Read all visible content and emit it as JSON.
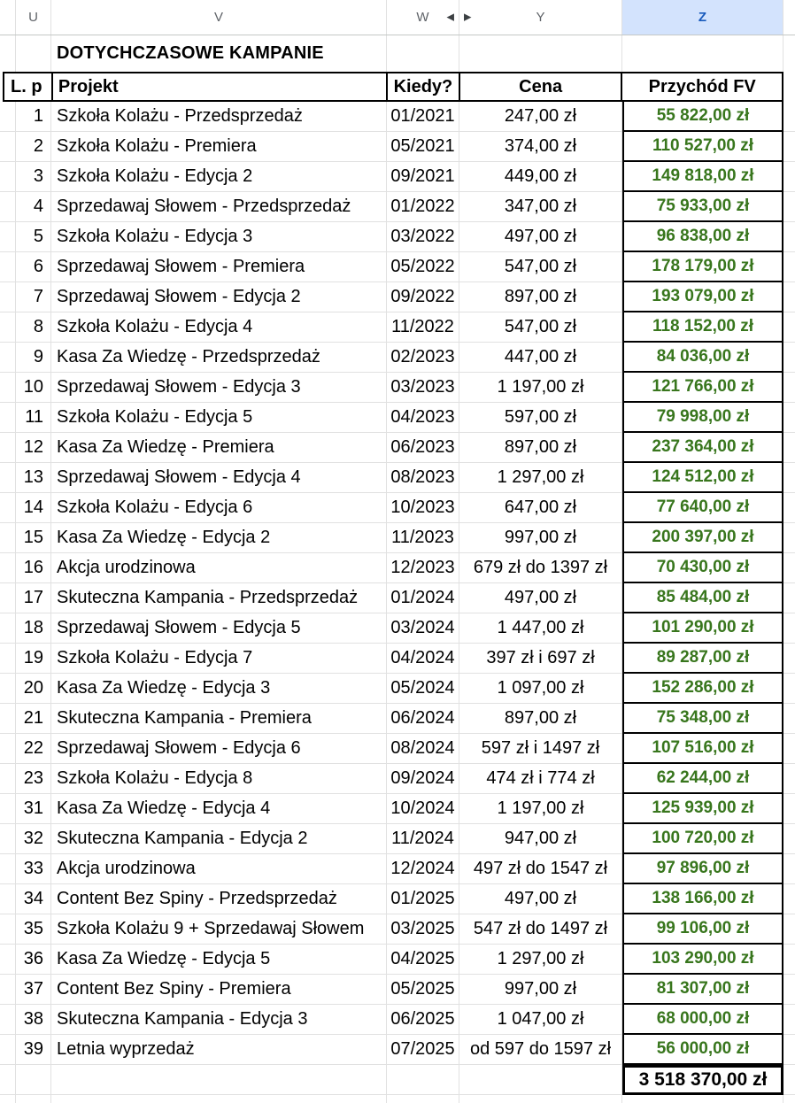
{
  "colstrip": {
    "letters": [
      "U",
      "V",
      "W",
      "Y",
      "Z"
    ]
  },
  "icons": {
    "collapse_left_arrow": "◀",
    "collapse_right_arrow": "▶"
  },
  "title": "DOTYCHCZASOWE KAMPANIE",
  "table": {
    "headers": {
      "lp": "L. p",
      "projekt": "Projekt",
      "kiedy": "Kiedy?",
      "cena": "Cena",
      "przychod": "Przychód FV"
    }
  },
  "rows": [
    {
      "lp": "1",
      "projekt": "Szkoła Kolażu - Przedsprzedaż",
      "kiedy": "01/2021",
      "cena": "247,00 zł",
      "przychod": "55 822,00 zł"
    },
    {
      "lp": "2",
      "projekt": "Szkoła Kolażu - Premiera",
      "kiedy": "05/2021",
      "cena": "374,00 zł",
      "przychod": "110 527,00 zł"
    },
    {
      "lp": "3",
      "projekt": "Szkoła Kolażu - Edycja 2",
      "kiedy": "09/2021",
      "cena": "449,00 zł",
      "przychod": "149 818,00 zł"
    },
    {
      "lp": "4",
      "projekt": "Sprzedawaj Słowem - Przedsprzedaż",
      "kiedy": "01/2022",
      "cena": "347,00 zł",
      "przychod": "75 933,00 zł"
    },
    {
      "lp": "5",
      "projekt": "Szkoła Kolażu - Edycja 3",
      "kiedy": "03/2022",
      "cena": "497,00 zł",
      "przychod": "96 838,00 zł"
    },
    {
      "lp": "6",
      "projekt": "Sprzedawaj Słowem - Premiera",
      "kiedy": "05/2022",
      "cena": "547,00 zł",
      "przychod": "178 179,00 zł"
    },
    {
      "lp": "7",
      "projekt": "Sprzedawaj Słowem - Edycja 2",
      "kiedy": "09/2022",
      "cena": "897,00 zł",
      "przychod": "193 079,00 zł"
    },
    {
      "lp": "8",
      "projekt": "Szkoła Kolażu - Edycja 4",
      "kiedy": "11/2022",
      "cena": "547,00 zł",
      "przychod": "118 152,00 zł"
    },
    {
      "lp": "9",
      "projekt": "Kasa Za Wiedzę - Przedsprzedaż",
      "kiedy": "02/2023",
      "cena": "447,00 zł",
      "przychod": "84 036,00 zł"
    },
    {
      "lp": "10",
      "projekt": "Sprzedawaj Słowem - Edycja 3",
      "kiedy": "03/2023",
      "cena": "1 197,00 zł",
      "przychod": "121 766,00 zł"
    },
    {
      "lp": "11",
      "projekt": "Szkoła Kolażu - Edycja 5",
      "kiedy": "04/2023",
      "cena": "597,00 zł",
      "przychod": "79 998,00 zł"
    },
    {
      "lp": "12",
      "projekt": "Kasa Za Wiedzę - Premiera",
      "kiedy": "06/2023",
      "cena": "897,00 zł",
      "przychod": "237 364,00 zł"
    },
    {
      "lp": "13",
      "projekt": "Sprzedawaj Słowem - Edycja 4",
      "kiedy": "08/2023",
      "cena": "1 297,00 zł",
      "przychod": "124 512,00 zł"
    },
    {
      "lp": "14",
      "projekt": "Szkoła Kolażu - Edycja 6",
      "kiedy": "10/2023",
      "cena": "647,00 zł",
      "przychod": "77 640,00 zł"
    },
    {
      "lp": "15",
      "projekt": "Kasa Za Wiedzę - Edycja 2",
      "kiedy": "11/2023",
      "cena": "997,00 zł",
      "przychod": "200 397,00 zł"
    },
    {
      "lp": "16",
      "projekt": "Akcja urodzinowa",
      "kiedy": "12/2023",
      "cena": "679 zł do 1397 zł",
      "przychod": "70 430,00 zł"
    },
    {
      "lp": "17",
      "projekt": "Skuteczna Kampania - Przedsprzedaż",
      "kiedy": "01/2024",
      "cena": "497,00 zł",
      "przychod": "85 484,00 zł"
    },
    {
      "lp": "18",
      "projekt": "Sprzedawaj Słowem - Edycja 5",
      "kiedy": "03/2024",
      "cena": "1 447,00 zł",
      "przychod": "101 290,00 zł"
    },
    {
      "lp": "19",
      "projekt": "Szkoła Kolażu - Edycja 7",
      "kiedy": "04/2024",
      "cena": "397 zł i 697 zł",
      "przychod": "89 287,00 zł"
    },
    {
      "lp": "20",
      "projekt": "Kasa Za Wiedzę - Edycja 3",
      "kiedy": "05/2024",
      "cena": "1 097,00 zł",
      "przychod": "152 286,00 zł"
    },
    {
      "lp": "21",
      "projekt": "Skuteczna Kampania - Premiera",
      "kiedy": "06/2024",
      "cena": "897,00 zł",
      "przychod": "75 348,00 zł"
    },
    {
      "lp": "22",
      "projekt": "Sprzedawaj Słowem - Edycja 6",
      "kiedy": "08/2024",
      "cena": "597 zł i 1497 zł",
      "przychod": "107 516,00 zł"
    },
    {
      "lp": "23",
      "projekt": "Szkoła Kolażu - Edycja 8",
      "kiedy": "09/2024",
      "cena": "474 zł i 774 zł",
      "przychod": "62 244,00 zł"
    },
    {
      "lp": "31",
      "projekt": "Kasa Za Wiedzę - Edycja 4",
      "kiedy": "10/2024",
      "cena": "1 197,00 zł",
      "przychod": "125 939,00 zł"
    },
    {
      "lp": "32",
      "projekt": "Skuteczna Kampania - Edycja 2",
      "kiedy": "11/2024",
      "cena": "947,00 zł",
      "przychod": "100 720,00 zł"
    },
    {
      "lp": "33",
      "projekt": "Akcja urodzinowa",
      "kiedy": "12/2024",
      "cena": "497 zł do 1547 zł",
      "przychod": "97 896,00 zł"
    },
    {
      "lp": "34",
      "projekt": "Content Bez Spiny - Przedsprzedaż",
      "kiedy": "01/2025",
      "cena": "497,00 zł",
      "przychod": "138 166,00 zł"
    },
    {
      "lp": "35",
      "projekt": "Szkoła Kolażu 9 + Sprzedawaj Słowem",
      "kiedy": "03/2025",
      "cena": "547 zł do 1497 zł",
      "przychod": "99 106,00 zł"
    },
    {
      "lp": "36",
      "projekt": "Kasa Za Wiedzę - Edycja 5",
      "kiedy": "04/2025",
      "cena": "1 297,00 zł",
      "przychod": "103 290,00 zł"
    },
    {
      "lp": "37",
      "projekt": "Content Bez Spiny - Premiera",
      "kiedy": "05/2025",
      "cena": "997,00 zł",
      "przychod": "81 307,00 zł"
    },
    {
      "lp": "38",
      "projekt": "Skuteczna Kampania - Edycja 3",
      "kiedy": "06/2025",
      "cena": "1 047,00 zł",
      "przychod": "68 000,00 zł"
    },
    {
      "lp": "39",
      "projekt": "Letnia wyprzedaż",
      "kiedy": "07/2025",
      "cena": "od 597 do 1597 zł",
      "przychod": "56 000,00 zł"
    }
  ],
  "total": "3 518 370,00 zł",
  "colors": {
    "revenue_green": "#38761d",
    "selected_column_bg": "#d3e3fd",
    "selected_column_text": "#185abc",
    "gridline": "#e1e1e1",
    "border_black": "#000000"
  }
}
